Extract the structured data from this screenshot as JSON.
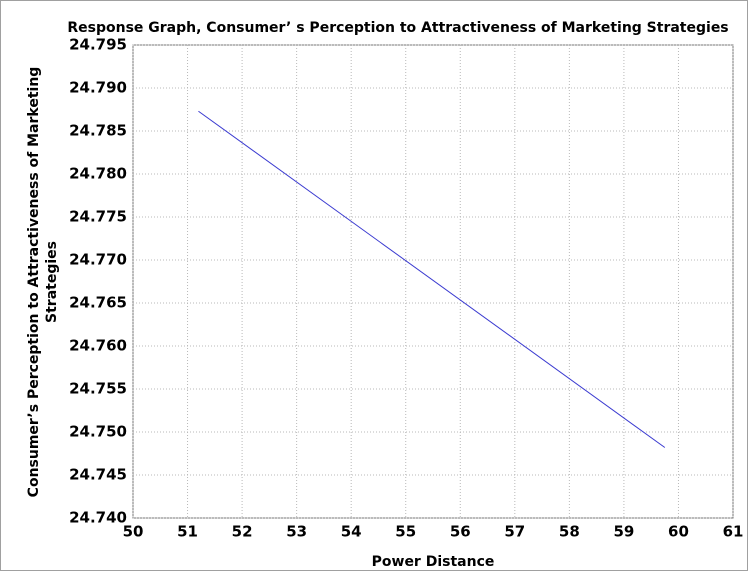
{
  "chart_data": {
    "type": "line",
    "title": "Response Graph, Consumer’ s Perception to Attractiveness of Marketing Strategies",
    "xlabel": "Power Distance",
    "ylabel": [
      "Consumer’s Perception to Attractiveness of Marketing",
      "Strategies"
    ],
    "x": [
      51.2,
      59.75
    ],
    "series": [
      {
        "color": "#3a3ad0",
        "values": [
          24.7873,
          24.7482
        ]
      }
    ],
    "xlim": [
      50,
      61
    ],
    "xticks": [
      50,
      51,
      52,
      53,
      54,
      55,
      56,
      57,
      58,
      59,
      60,
      61
    ],
    "ylim": [
      24.74,
      24.795
    ],
    "yticks": [
      {
        "value": 24.74,
        "label": "24.740"
      },
      24.745,
      {
        "value": 24.75,
        "label": "24.750"
      },
      24.755,
      {
        "value": 24.76,
        "label": "24.760"
      },
      24.765,
      {
        "value": 24.77,
        "label": "24.770"
      },
      24.775,
      {
        "value": 24.78,
        "label": "24.780"
      },
      24.785,
      {
        "value": 24.79,
        "label": "24.790"
      },
      24.795
    ],
    "grid": true
  }
}
